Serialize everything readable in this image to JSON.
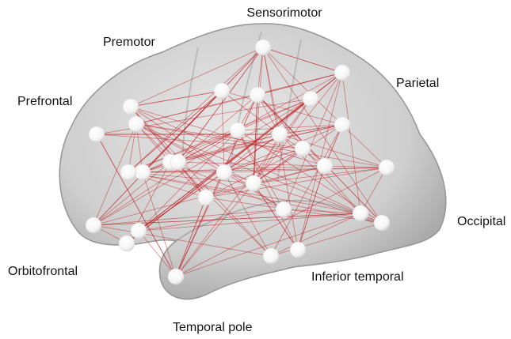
{
  "labels": [
    "Sensorimotor",
    "Premotor",
    "Parietal",
    "Prefrontal",
    "Occipital",
    "Orbitofrontal",
    "Inferior temporal",
    "Temporal pole"
  ]
}
